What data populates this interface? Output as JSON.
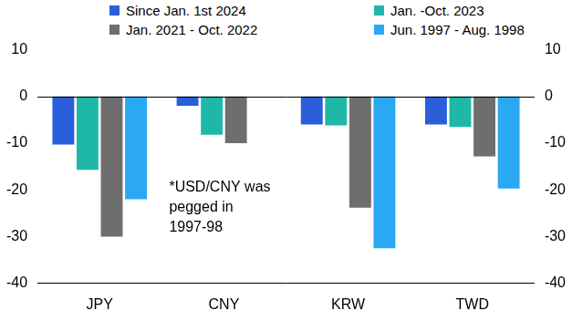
{
  "chart_data": {
    "type": "bar",
    "categories": [
      "JPY",
      "CNY",
      "KRW",
      "TWD"
    ],
    "series": [
      {
        "name": "Since Jan. 1st 2024",
        "color": "#2b5fd9",
        "values": [
          -10.3,
          -2,
          -6,
          -6
        ]
      },
      {
        "name": "Jan. -Oct. 2023",
        "color": "#1fb8a8",
        "values": [
          -15.7,
          -8.2,
          -6.2,
          -6.5
        ]
      },
      {
        "name": "Jan. 2021 - Oct. 2022",
        "color": "#6e6e6e",
        "values": [
          -30,
          -10,
          -23.8,
          -12.8
        ]
      },
      {
        "name": "Jun. 1997 - Aug. 1998",
        "color": "#2aa8f2",
        "values": [
          -22,
          null,
          -32.5,
          -19.7
        ]
      }
    ],
    "annotation": "*USD/CNY was pegged in 1997-98",
    "ylim": [
      -40,
      10
    ],
    "yticks": [
      -40,
      -30,
      -20,
      -10,
      0,
      10
    ],
    "y2lim": [
      -40,
      10
    ],
    "y2ticks": [
      -40,
      -30,
      -20,
      -10,
      0,
      10
    ],
    "grid": false,
    "legend": "top"
  }
}
